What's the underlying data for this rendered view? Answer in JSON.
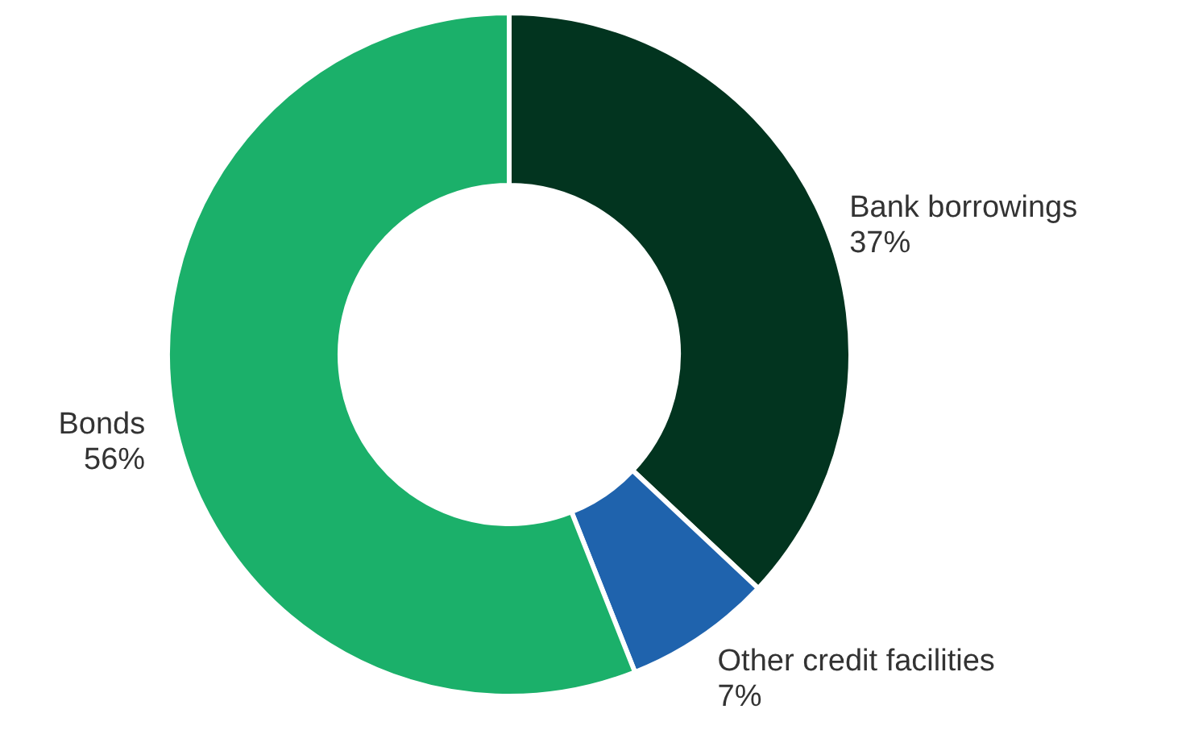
{
  "chart_data": {
    "type": "donut",
    "categories": [
      "Bank borrowings",
      "Other credit facilities",
      "Bonds"
    ],
    "values": [
      37,
      7,
      56
    ],
    "colors": [
      "#02341f",
      "#1f63ad",
      "#1bb06a"
    ],
    "value_labels": [
      "37%",
      "7%",
      "56%"
    ]
  }
}
